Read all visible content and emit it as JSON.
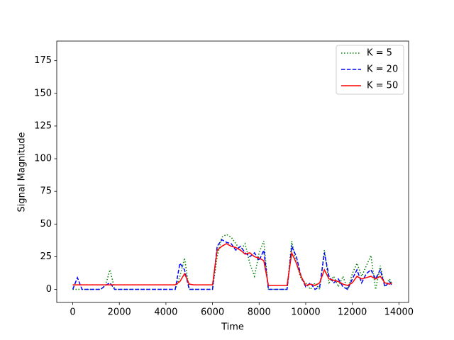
{
  "chart_data": {
    "type": "line",
    "xlabel": "Time",
    "ylabel": "Signal Magnitude",
    "x": [
      0,
      200,
      400,
      600,
      800,
      1000,
      1200,
      1400,
      1600,
      1800,
      2000,
      2200,
      2400,
      2600,
      2800,
      3000,
      3200,
      3400,
      3600,
      3800,
      4000,
      4200,
      4400,
      4600,
      4800,
      5000,
      5200,
      5400,
      5600,
      5800,
      6000,
      6200,
      6400,
      6600,
      6800,
      7000,
      7200,
      7400,
      7600,
      7800,
      8000,
      8200,
      8400,
      8600,
      8800,
      9000,
      9200,
      9400,
      9600,
      9800,
      10000,
      10200,
      10400,
      10600,
      10800,
      11000,
      11200,
      11400,
      11600,
      11800,
      12000,
      12200,
      12400,
      12600,
      12800,
      13000,
      13200,
      13400,
      13600,
      13700
    ],
    "series": [
      {
        "name": "K = 5",
        "color": "#008000",
        "dash": "dotted",
        "values": [
          0,
          0,
          0,
          0,
          0,
          0,
          0,
          3,
          15,
          0,
          0,
          0,
          0,
          0,
          0,
          0,
          0,
          0,
          0,
          0,
          0,
          0,
          0,
          10,
          24,
          0,
          0,
          0,
          0,
          0,
          0,
          25,
          40,
          42,
          40,
          35,
          30,
          35,
          20,
          10,
          28,
          37,
          0,
          0,
          0,
          0,
          0,
          37,
          20,
          8,
          5,
          0,
          5,
          0,
          30,
          5,
          10,
          2,
          10,
          0,
          12,
          20,
          10,
          18,
          26,
          0,
          18,
          2,
          8,
          4
        ]
      },
      {
        "name": "K = 20",
        "color": "#0000ff",
        "dash": "dashed",
        "values": [
          0,
          9,
          0,
          0,
          0,
          0,
          0,
          3,
          5,
          0,
          0,
          0,
          0,
          0,
          0,
          0,
          0,
          0,
          0,
          0,
          0,
          0,
          0,
          20,
          15,
          0,
          0,
          0,
          0,
          0,
          0,
          33,
          38,
          36,
          35,
          30,
          33,
          28,
          25,
          28,
          22,
          30,
          0,
          0,
          0,
          0,
          0,
          33,
          25,
          10,
          2,
          5,
          0,
          2,
          28,
          10,
          5,
          8,
          2,
          0,
          8,
          15,
          5,
          12,
          15,
          8,
          15,
          2,
          6,
          3
        ]
      },
      {
        "name": "K = 50",
        "color": "#ff0000",
        "dash": "solid",
        "values": [
          3.5,
          3.5,
          3.5,
          3.5,
          3.5,
          3.5,
          3.5,
          3.5,
          3.5,
          3.5,
          3.5,
          3.5,
          3.5,
          3.5,
          3.5,
          3.5,
          3.5,
          3.5,
          3.5,
          3.5,
          3.5,
          3.5,
          3.5,
          6,
          12,
          4,
          3.5,
          3.5,
          3.5,
          3.5,
          3.5,
          30,
          33,
          35,
          33,
          32,
          30,
          27,
          28,
          25,
          24,
          22,
          3,
          3,
          3,
          3,
          3,
          28,
          20,
          10,
          3,
          4,
          3,
          5,
          15,
          8,
          7,
          6,
          4,
          3,
          5,
          10,
          8,
          9,
          10,
          8,
          10,
          5,
          4,
          5
        ]
      }
    ],
    "xlim": [
      -686,
      14416
    ],
    "xticks": [
      0,
      2000,
      4000,
      6000,
      8000,
      10000,
      12000,
      14000
    ],
    "ylim": [
      -10,
      190
    ],
    "yticks": [
      0,
      25,
      50,
      75,
      100,
      125,
      150,
      175
    ],
    "legend": "upper right"
  }
}
